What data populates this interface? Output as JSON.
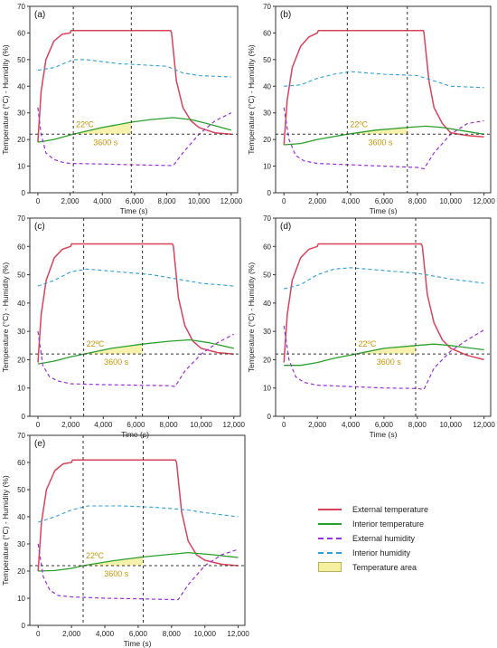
{
  "chart_data": [
    {
      "panel": "(a)",
      "type": "line",
      "xlabel": "Time (s)",
      "ylabel": "Temperature (°C) - Humidity (%)",
      "xlim": [
        -500,
        12400
      ],
      "ylim": [
        0,
        70
      ],
      "xticks": [
        "0",
        "2,000",
        "4,000",
        "6,000",
        "8,000",
        "10,000",
        "12,000"
      ],
      "yticks": [
        "0",
        "10",
        "20",
        "30",
        "40",
        "50",
        "60",
        "70"
      ],
      "annotation_temp": "22ºC",
      "annotation_time": "3600 s",
      "threshold": 22,
      "vline1": 2200,
      "vline2": 5800,
      "series": [
        {
          "name": "External temperature",
          "x": [
            0,
            200,
            500,
            1000,
            1500,
            2000,
            8300,
            8600,
            9000,
            9500,
            10000,
            11000,
            12000
          ],
          "y": [
            19,
            38,
            50,
            57,
            59.5,
            60,
            60,
            42,
            32,
            27,
            24.5,
            22.5,
            22
          ]
        },
        {
          "name": "Interior temperature",
          "x": [
            0,
            1000,
            2200,
            4000,
            5800,
            7000,
            8400,
            9500,
            10500,
            12000
          ],
          "y": [
            19,
            20,
            22,
            24.5,
            26.5,
            27.5,
            28.2,
            27.5,
            26,
            23.5
          ]
        },
        {
          "name": "External humidity",
          "x": [
            0,
            200,
            500,
            1000,
            1500,
            2000,
            4000,
            6000,
            8400,
            9000,
            10000,
            11000,
            12000
          ],
          "y": [
            32,
            22,
            15,
            12.5,
            11.5,
            11,
            10.8,
            10.5,
            10.2,
            15,
            22,
            27,
            30
          ]
        },
        {
          "name": "Interior humidity",
          "x": [
            0,
            1000,
            2200,
            3000,
            5000,
            8000,
            9000,
            10000,
            12000
          ],
          "y": [
            46,
            47,
            50,
            50,
            48.5,
            47.5,
            45,
            44,
            43.5
          ]
        }
      ]
    },
    {
      "panel": "(b)",
      "type": "line",
      "xlabel": "Time (s)",
      "ylabel": "Temperature (°C) - Humidity (%)",
      "xlim": [
        -500,
        12400
      ],
      "ylim": [
        0,
        70
      ],
      "xticks": [
        "0",
        "2,000",
        "4,000",
        "6,000",
        "8,000",
        "10,000",
        "12,000"
      ],
      "yticks": [
        "0",
        "10",
        "20",
        "30",
        "40",
        "50",
        "60",
        "70"
      ],
      "annotation_temp": "22ºC",
      "annotation_time": "3600 s",
      "threshold": 22,
      "vline1": 3800,
      "vline2": 7400,
      "series": [
        {
          "name": "External temperature",
          "x": [
            0,
            200,
            500,
            1000,
            1500,
            2000,
            8400,
            8700,
            9000,
            9500,
            10000,
            11000,
            12000
          ],
          "y": [
            18,
            35,
            47,
            55,
            58.5,
            60,
            60,
            42,
            32,
            26,
            22.5,
            21.5,
            21
          ]
        },
        {
          "name": "Interior temperature",
          "x": [
            0,
            1000,
            2000,
            3800,
            5500,
            7400,
            8500,
            9500,
            10500,
            12000
          ],
          "y": [
            18,
            18.5,
            20,
            22,
            23.5,
            24.5,
            25,
            24.5,
            23.5,
            22
          ]
        },
        {
          "name": "External humidity",
          "x": [
            0,
            300,
            700,
            1200,
            2000,
            4000,
            6000,
            8000,
            8400,
            9000,
            10000,
            11000,
            12000
          ],
          "y": [
            32,
            20,
            14,
            12,
            11,
            10.5,
            10,
            9.5,
            9,
            15,
            22,
            26,
            27
          ]
        },
        {
          "name": "Interior humidity",
          "x": [
            0,
            1000,
            2000,
            3000,
            4000,
            6000,
            8000,
            9000,
            10000,
            12000
          ],
          "y": [
            40,
            40.5,
            43,
            44.5,
            45.5,
            44.5,
            44,
            42,
            40,
            39.5
          ]
        }
      ]
    },
    {
      "panel": "(c)",
      "type": "line",
      "xlabel": "Time (s)",
      "ylabel": "Temperature (°C) - Humidity (%)",
      "xlim": [
        -500,
        12400
      ],
      "ylim": [
        0,
        70
      ],
      "xticks": [
        "0",
        "2,000",
        "4,000",
        "6,000",
        "8,000",
        "10,000",
        "12,000"
      ],
      "yticks": [
        "0",
        "10",
        "20",
        "30",
        "40",
        "50",
        "60",
        "70"
      ],
      "annotation_temp": "22ºC",
      "annotation_time": "3600 s",
      "threshold": 22,
      "vline1": 2800,
      "vline2": 6400,
      "series": [
        {
          "name": "External temperature",
          "x": [
            0,
            200,
            500,
            1000,
            1500,
            2000,
            8300,
            8600,
            9000,
            9500,
            10000,
            11000,
            12000
          ],
          "y": [
            19,
            36,
            48,
            56,
            59,
            60,
            60,
            42,
            32,
            26.5,
            24,
            22.5,
            22
          ]
        },
        {
          "name": "Interior temperature",
          "x": [
            0,
            1000,
            2000,
            2800,
            4500,
            6400,
            8000,
            9300,
            10500,
            12000
          ],
          "y": [
            18.5,
            19.5,
            21,
            22,
            24,
            25.5,
            26.5,
            27,
            26,
            24
          ]
        },
        {
          "name": "External humidity",
          "x": [
            0,
            300,
            700,
            1200,
            2000,
            4000,
            6000,
            8000,
            8400,
            9000,
            10000,
            11000,
            12000
          ],
          "y": [
            30,
            18,
            14,
            12.5,
            11.5,
            11.2,
            11,
            10.8,
            10.5,
            16,
            22,
            26,
            29
          ]
        },
        {
          "name": "Interior humidity",
          "x": [
            0,
            1000,
            2000,
            3000,
            5000,
            7000,
            9000,
            10000,
            12000
          ],
          "y": [
            46,
            48,
            51,
            52,
            51,
            50,
            48,
            47,
            46
          ]
        }
      ]
    },
    {
      "panel": "(d)",
      "type": "line",
      "xlabel": "Time (s)",
      "ylabel": "Temperature (°C) - Humidity (%)",
      "xlim": [
        -500,
        12400
      ],
      "ylim": [
        0,
        70
      ],
      "xticks": [
        "0",
        "2,000",
        "4,000",
        "6,000",
        "8,000",
        "10,000",
        "12,000"
      ],
      "yticks": [
        "0",
        "10",
        "20",
        "30",
        "40",
        "50",
        "60",
        "70"
      ],
      "annotation_temp": "22ºC",
      "annotation_time": "3600 s",
      "threshold": 22,
      "vline1": 4300,
      "vline2": 7900,
      "series": [
        {
          "name": "External temperature",
          "x": [
            0,
            200,
            500,
            1000,
            1500,
            2000,
            8300,
            8600,
            9000,
            9500,
            10000,
            11000,
            12000
          ],
          "y": [
            19,
            36,
            48,
            56,
            59,
            60,
            60,
            43,
            33,
            27,
            24,
            21.5,
            20
          ]
        },
        {
          "name": "Interior temperature",
          "x": [
            0,
            1000,
            2000,
            3000,
            4300,
            6000,
            7900,
            9000,
            10000,
            12000
          ],
          "y": [
            18,
            18,
            19,
            20.5,
            22,
            24,
            25,
            25.5,
            25,
            23.5
          ]
        },
        {
          "name": "External humidity",
          "x": [
            0,
            300,
            700,
            1200,
            2000,
            4000,
            6000,
            8000,
            8400,
            9000,
            10000,
            11000,
            12000
          ],
          "y": [
            32,
            20,
            14,
            12,
            11,
            10.5,
            10,
            9.8,
            9.5,
            17,
            23,
            27,
            30.5
          ]
        },
        {
          "name": "Interior humidity",
          "x": [
            0,
            1000,
            2000,
            3000,
            4000,
            6000,
            8000,
            9000,
            10000,
            12000
          ],
          "y": [
            45,
            46.5,
            50,
            52,
            52.5,
            51.5,
            50.5,
            49.5,
            48.5,
            47
          ]
        }
      ]
    },
    {
      "panel": "(e)",
      "type": "line",
      "xlabel": "Time (s)",
      "ylabel": "Temperature (°C) - Humidity (%)",
      "xlim": [
        -500,
        12400
      ],
      "ylim": [
        0,
        70
      ],
      "xticks": [
        "0",
        "2,000",
        "4,000",
        "6,000",
        "8,000",
        "10,000",
        "12,000"
      ],
      "yticks": [
        "0",
        "10",
        "20",
        "30",
        "40",
        "50",
        "60",
        "70"
      ],
      "annotation_temp": "22ºC",
      "annotation_time": "3600 s",
      "threshold": 22,
      "vline1": 2700,
      "vline2": 6300,
      "series": [
        {
          "name": "External temperature",
          "x": [
            0,
            200,
            500,
            1000,
            1500,
            2000,
            8300,
            8600,
            9000,
            9500,
            10000,
            11000,
            12000
          ],
          "y": [
            20,
            38,
            50,
            57,
            59.5,
            60,
            60,
            42,
            31,
            26,
            24,
            22.5,
            22
          ]
        },
        {
          "name": "Interior temperature",
          "x": [
            0,
            1000,
            2000,
            2700,
            4500,
            6300,
            8000,
            9000,
            10500,
            12000
          ],
          "y": [
            20,
            20.2,
            21,
            22,
            23.8,
            25.2,
            26.2,
            26.8,
            26,
            25
          ]
        },
        {
          "name": "External humidity",
          "x": [
            0,
            300,
            700,
            1200,
            2000,
            4000,
            6000,
            8000,
            8400,
            9000,
            10000,
            11000,
            12000
          ],
          "y": [
            30,
            18,
            13,
            11,
            10.5,
            10,
            9.8,
            9.5,
            9.5,
            15,
            22,
            26,
            28
          ]
        },
        {
          "name": "Interior humidity",
          "x": [
            0,
            1000,
            2000,
            3000,
            5000,
            7000,
            9000,
            10000,
            12000
          ],
          "y": [
            38,
            40,
            42.5,
            44,
            44,
            43.5,
            42.5,
            41.5,
            40
          ]
        }
      ]
    }
  ],
  "legend": {
    "items": [
      {
        "label": "External temperature",
        "color": "#d9435a",
        "style": "solid"
      },
      {
        "label": "Interior temperature",
        "color": "#2ca02c",
        "style": "solid"
      },
      {
        "label": "External humidity",
        "color": "#9b30d8",
        "style": "dashed"
      },
      {
        "label": "Interior humidity",
        "color": "#2f9fd8",
        "style": "dashed"
      },
      {
        "label": "Temperature area",
        "color": "#f5f0a0",
        "style": "area"
      }
    ]
  },
  "colors": {
    "external_temperature": "#d9435a",
    "interior_temperature": "#2ca02c",
    "external_humidity": "#9b30d8",
    "interior_humidity": "#2f9fd8",
    "temperature_area": "#f5f0a0",
    "annotation": "#c8960a"
  }
}
